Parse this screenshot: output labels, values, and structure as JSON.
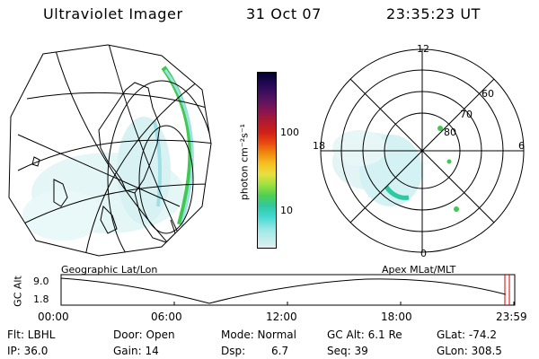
{
  "header": {
    "instrument": "Ultraviolet Imager",
    "date": "31 Oct 07",
    "time": "23:35:23 UT"
  },
  "colorbar": {
    "unit_label": "photon cm⁻²s⁻¹",
    "ticks": [
      "100",
      "10"
    ],
    "colors": [
      "#000033",
      "#2b0a5a",
      "#5a1460",
      "#8a1450",
      "#b01a30",
      "#d02018",
      "#e84810",
      "#f08a10",
      "#f4c020",
      "#e8e040",
      "#a0e040",
      "#50d050",
      "#30c8a0",
      "#40d8d0",
      "#a0e8e8",
      "#e0f0f0"
    ]
  },
  "polar_plot": {
    "mlt_labels": [
      "12",
      "18",
      "6",
      "0"
    ],
    "lat_labels": [
      "60",
      "70",
      "80"
    ]
  },
  "map_plot": {
    "projection_label": "Geographic Lat/Lon"
  },
  "polar_label": "Apex MLat/MLT",
  "altitude_panel": {
    "axis_title": "GC Alt",
    "y_ticks": [
      "9.0",
      "1.8"
    ],
    "x_ticks": [
      "00:00",
      "06:00",
      "12:00",
      "18:00",
      "23:59"
    ]
  },
  "info": {
    "flt": "Flt: LBHL",
    "ip": "IP: 36.0",
    "door": "Door: Open",
    "gain": "Gain: 14",
    "mode": "Mode: Normal",
    "dsp_label": "Dsp:",
    "dsp_value": "6.7",
    "gc_alt": "GC Alt: 6.1 Re",
    "seq": "Seq: 39",
    "glat": "GLat: -74.2",
    "glon": "GLon: 308.5"
  },
  "colors": {
    "aurora_cyan": "#9fe0e6",
    "aurora_green": "#40c850",
    "line": "#000000",
    "marker": "#d00000"
  }
}
